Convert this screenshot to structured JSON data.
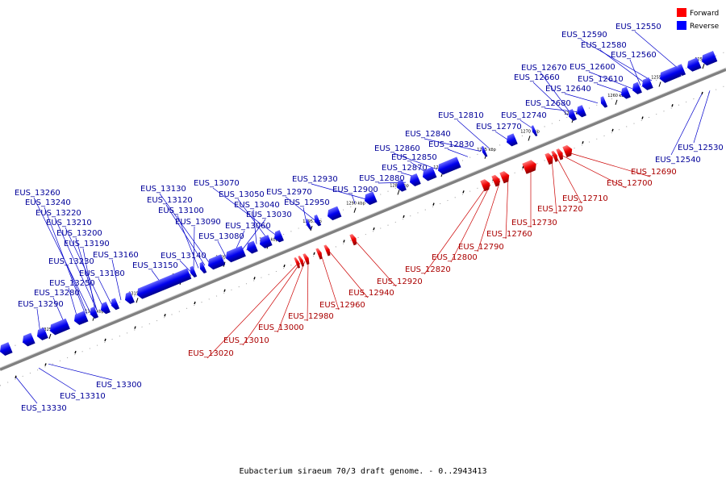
{
  "caption": "Eubacterium siraeum 70/3 draft genome. - 0..2943413",
  "legend": [
    {
      "label": "Forward",
      "color": "#ff0000"
    },
    {
      "label": "Reverse",
      "color": "#0000ff"
    }
  ],
  "colors": {
    "axis": "#888888",
    "forward": "#ff0000",
    "reverse": "#0000ff",
    "line_forward": "#cc0000",
    "line_reverse": "#0000cc"
  },
  "ticks": [
    "1250 kbp",
    "1255 kbp",
    "1260 kbp",
    "1265 kbp",
    "1270 kbp",
    "1275 kbp",
    "1280 kbp",
    "1285 kbp",
    "1290 kbp",
    "1295 kbp",
    "1300 kbp",
    "1305 kbp",
    "1310 kbp",
    "1315 kbp",
    "1320 kbp",
    "1325 kbp"
  ],
  "reverse_labels": [
    "EUS_12550",
    "EUS_12590",
    "EUS_12580",
    "EUS_12560",
    "EUS_12600",
    "EUS_12670",
    "EUS_12660",
    "EUS_12610",
    "EUS_12640",
    "EUS_12680",
    "EUS_12740",
    "EUS_12810",
    "EUS_12770",
    "EUS_12840",
    "EUS_12830",
    "EUS_12860",
    "EUS_12850",
    "EUS_12870",
    "EUS_12880",
    "EUS_12930",
    "EUS_12900",
    "EUS_12970",
    "EUS_12950",
    "EUS_13070",
    "EUS_13050",
    "EUS_13040",
    "EUS_13030",
    "EUS_13060",
    "EUS_13080",
    "EUS_13130",
    "EUS_13120",
    "EUS_13100",
    "EUS_13090",
    "EUS_13140",
    "EUS_13150",
    "EUS_13160",
    "EUS_13180",
    "EUS_13260",
    "EUS_13240",
    "EUS_13220",
    "EUS_13210",
    "EUS_13200",
    "EUS_13190",
    "EUS_13230",
    "EUS_13250",
    "EUS_13280",
    "EUS_13290",
    "EUS_12530",
    "EUS_12540",
    "EUS_13300",
    "EUS_13310",
    "EUS_13330"
  ],
  "forward_labels": [
    "EUS_12690",
    "EUS_12700",
    "EUS_12710",
    "EUS_12720",
    "EUS_12730",
    "EUS_12760",
    "EUS_12790",
    "EUS_12800",
    "EUS_12820",
    "EUS_12920",
    "EUS_12940",
    "EUS_12960",
    "EUS_12980",
    "EUS_13000",
    "EUS_13010",
    "EUS_13020"
  ]
}
